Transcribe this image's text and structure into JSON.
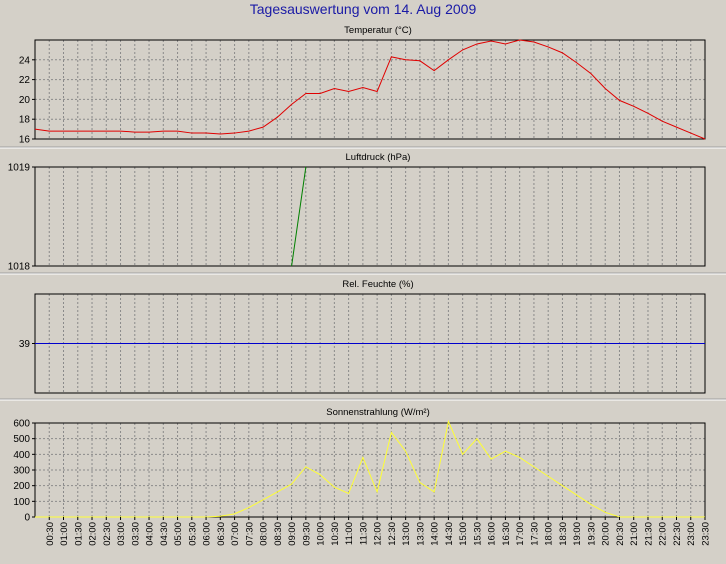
{
  "page": {
    "title": "Tagesauswertung vom 14. Aug 2009"
  },
  "colors": {
    "title": "#1a1aa6",
    "panel_bg": "#d4d0c8",
    "temperature": "#e00000",
    "pressure": "#008000",
    "humidity": "#0000cc",
    "radiation": "#ffff33"
  },
  "chart_data": [
    {
      "type": "line",
      "title": "Temperatur (°C)",
      "ylim": [
        16,
        26
      ],
      "yticks": [
        16,
        18,
        20,
        22,
        24
      ],
      "grid": true,
      "x_hours": [
        0,
        0.5,
        1,
        1.5,
        2,
        2.5,
        3,
        3.5,
        4,
        4.5,
        5,
        5.5,
        6,
        6.5,
        7,
        7.5,
        8,
        8.5,
        9,
        9.5,
        10,
        10.5,
        11,
        11.5,
        12,
        12.5,
        13,
        13.5,
        14,
        14.5,
        15,
        15.5,
        16,
        16.5,
        17,
        17.5,
        18,
        18.5,
        19,
        19.5,
        20,
        20.5,
        21,
        21.5,
        22,
        22.5,
        23,
        23.5
      ],
      "series": [
        {
          "values": [
            17.0,
            16.8,
            16.8,
            16.8,
            16.8,
            16.8,
            16.8,
            16.7,
            16.7,
            16.8,
            16.8,
            16.6,
            16.6,
            16.5,
            16.6,
            16.8,
            17.2,
            18.2,
            19.5,
            20.6,
            20.6,
            21.1,
            20.8,
            21.2,
            20.8,
            24.3,
            24.0,
            23.9,
            22.9,
            24.0,
            25.0,
            25.6,
            25.9,
            25.6,
            26.0,
            25.8,
            25.3,
            24.7,
            23.7,
            22.6,
            21.1,
            19.9,
            19.3,
            18.6,
            17.8,
            17.2,
            16.6,
            16.0
          ]
        }
      ]
    },
    {
      "type": "line",
      "title": "Luftdruck (hPa)",
      "ylim": [
        1018,
        1019
      ],
      "yticks": [
        1018,
        1019
      ],
      "grid": true,
      "segment": {
        "x_hours": [
          9.0,
          9.5
        ],
        "values": [
          1018,
          1019
        ]
      },
      "series": [
        {
          "values": []
        }
      ]
    },
    {
      "type": "line",
      "title": "Rel. Feuchte (%)",
      "ylim": [
        38,
        40
      ],
      "yticks": [
        39
      ],
      "grid": true,
      "series": [
        {
          "values": [
            39,
            39
          ]
        }
      ]
    },
    {
      "type": "area",
      "title": "Sonnenstrahlung (W/m²)",
      "ylim": [
        0,
        600
      ],
      "yticks": [
        0,
        100,
        200,
        300,
        400,
        500,
        600
      ],
      "grid": true,
      "x_hours": [
        0,
        0.5,
        1,
        1.5,
        2,
        2.5,
        3,
        3.5,
        4,
        4.5,
        5,
        5.5,
        6,
        6.5,
        7,
        7.5,
        8,
        8.5,
        9,
        9.5,
        10,
        10.5,
        11,
        11.5,
        12,
        12.5,
        13,
        13.5,
        14,
        14.5,
        15,
        15.5,
        16,
        16.5,
        17,
        17.5,
        18,
        18.5,
        19,
        19.5,
        20,
        20.5,
        21,
        21.5,
        22,
        22.5,
        23,
        23.5
      ],
      "series": [
        {
          "values": [
            0,
            0,
            0,
            0,
            0,
            0,
            0,
            0,
            0,
            0,
            0,
            0,
            0,
            5,
            20,
            60,
            110,
            160,
            210,
            320,
            270,
            190,
            150,
            380,
            160,
            540,
            420,
            220,
            160,
            610,
            400,
            500,
            370,
            420,
            380,
            320,
            260,
            200,
            140,
            80,
            30,
            0,
            0,
            0,
            0,
            0,
            0,
            0
          ]
        }
      ]
    }
  ],
  "x_axis": {
    "tick_labels": [
      "00:30",
      "01:00",
      "01:30",
      "02:00",
      "02:30",
      "03:00",
      "03:30",
      "04:00",
      "04:30",
      "05:00",
      "05:30",
      "06:00",
      "06:30",
      "07:00",
      "07:30",
      "08:00",
      "08:30",
      "09:00",
      "09:30",
      "10:00",
      "10:30",
      "11:00",
      "11:30",
      "12:00",
      "12:30",
      "13:00",
      "13:30",
      "14:00",
      "14:30",
      "15:00",
      "15:30",
      "16:00",
      "16:30",
      "17:00",
      "17:30",
      "18:00",
      "18:30",
      "19:00",
      "19:30",
      "20:00",
      "20:30",
      "21:00",
      "21:30",
      "22:00",
      "22:30",
      "23:00",
      "23:30"
    ]
  }
}
